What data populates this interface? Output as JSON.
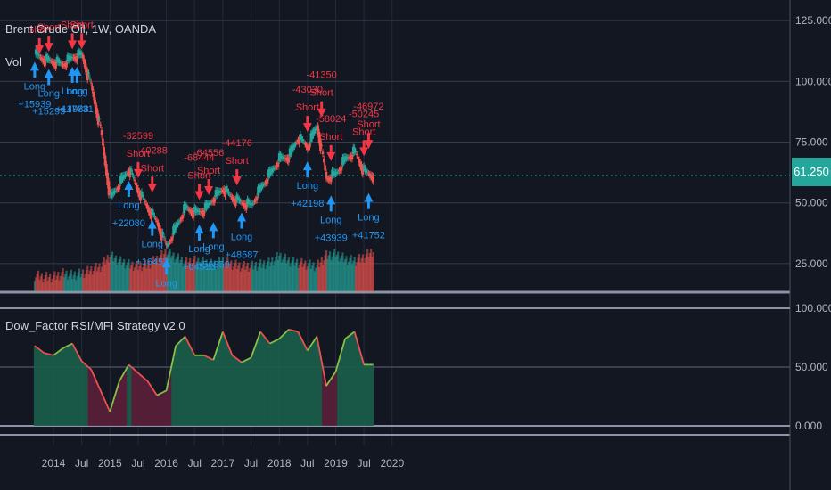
{
  "header": {
    "title": "Brent Crude Oil, 1W, OANDA",
    "volume_label": "Vol",
    "indicator_title": "Dow_Factor RSI/MFI Strategy v2.0"
  },
  "current_price": "61.250",
  "colors": {
    "background": "#131722",
    "grid": "#363c4e",
    "text": "#b2b5be",
    "up": "#26a69a",
    "down": "#ef5350",
    "long": "#2196f3",
    "short": "#f23645",
    "rsi_up": "#8bc34a",
    "rsi_down": "#ef5350"
  },
  "chart_data": {
    "type": "line",
    "price": {
      "y_ticks": [
        "125.000",
        "100.000",
        "75.000",
        "50.000",
        "25.000"
      ],
      "ylim": [
        18,
        128
      ],
      "x": [
        "2013-09",
        "2013-11",
        "2014-01",
        "2014-03",
        "2014-05",
        "2014-07",
        "2014-09",
        "2014-11",
        "2015-01",
        "2015-03",
        "2015-05",
        "2015-07",
        "2015-09",
        "2015-11",
        "2016-01",
        "2016-03",
        "2016-05",
        "2016-07",
        "2016-09",
        "2016-11",
        "2017-01",
        "2017-03",
        "2017-05",
        "2017-07",
        "2017-09",
        "2017-11",
        "2018-01",
        "2018-03",
        "2018-05",
        "2018-07",
        "2018-09",
        "2018-11",
        "2019-01",
        "2019-03",
        "2019-05",
        "2019-07",
        "2019-09"
      ],
      "close": [
        111,
        109,
        108,
        107,
        110,
        111,
        98,
        80,
        52,
        58,
        64,
        55,
        48,
        42,
        32,
        40,
        48,
        46,
        47,
        52,
        56,
        52,
        50,
        49,
        56,
        62,
        68,
        69,
        77,
        73,
        82,
        60,
        62,
        68,
        71,
        63,
        61
      ]
    },
    "volume": [
      9,
      8,
      8,
      10,
      9,
      10,
      12,
      14,
      20,
      17,
      15,
      14,
      15,
      18,
      22,
      19,
      16,
      17,
      16,
      15,
      17,
      15,
      14,
      14,
      15,
      16,
      20,
      17,
      16,
      15,
      14,
      20,
      21,
      18,
      17,
      19,
      23
    ],
    "indicator": {
      "y_ticks": [
        "100.000",
        "50.000",
        "0.000"
      ],
      "ylim": [
        0,
        100
      ],
      "values": [
        68,
        62,
        60,
        66,
        70,
        55,
        48,
        30,
        12,
        38,
        52,
        45,
        38,
        26,
        30,
        68,
        76,
        60,
        60,
        56,
        80,
        60,
        54,
        58,
        80,
        70,
        74,
        82,
        80,
        64,
        76,
        34,
        46,
        74,
        80,
        52,
        52
      ]
    },
    "x_ticks": [
      {
        "label": "2014",
        "date": "2014-01"
      },
      {
        "label": "Jul",
        "date": "2014-07"
      },
      {
        "label": "2015",
        "date": "2015-01"
      },
      {
        "label": "Jul",
        "date": "2015-07"
      },
      {
        "label": "2016",
        "date": "2016-01"
      },
      {
        "label": "Jul",
        "date": "2016-07"
      },
      {
        "label": "2017",
        "date": "2017-01"
      },
      {
        "label": "Jul",
        "date": "2017-07"
      },
      {
        "label": "2018",
        "date": "2018-01"
      },
      {
        "label": "Jul",
        "date": "2018-07"
      },
      {
        "label": "2019",
        "date": "2019-01"
      },
      {
        "label": "Jul",
        "date": "2019-07"
      },
      {
        "label": "2020",
        "date": "2020-01"
      }
    ],
    "signals": [
      {
        "type": "Short",
        "date": "2013-10",
        "value": "",
        "price": 109
      },
      {
        "type": "Short",
        "date": "2013-12",
        "value": "",
        "price": 110
      },
      {
        "type": "Short",
        "date": "2014-05",
        "value": "",
        "price": 111
      },
      {
        "type": "Short",
        "date": "2014-07",
        "value": "",
        "price": 111
      },
      {
        "type": "Long",
        "date": "2013-09",
        "value": "+15939",
        "price": 111
      },
      {
        "type": "Long",
        "date": "2013-12",
        "value": "+15295",
        "price": 108
      },
      {
        "type": "Long",
        "date": "2014-05",
        "value": "+14988",
        "price": 109
      },
      {
        "type": "Long",
        "date": "2014-06",
        "value": "+17731",
        "price": 109
      },
      {
        "type": "Short",
        "date": "2015-07",
        "value": "-32599",
        "price": 58
      },
      {
        "type": "Short",
        "date": "2015-10",
        "value": "-40288",
        "price": 52
      },
      {
        "type": "Long",
        "date": "2015-05",
        "value": "+22080",
        "price": 62
      },
      {
        "type": "Long",
        "date": "2015-10",
        "value": "+16453",
        "price": 46
      },
      {
        "type": "Long",
        "date": "2016-01",
        "value": "",
        "price": 30
      },
      {
        "type": "Short",
        "date": "2016-08",
        "value": "-68444",
        "price": 49
      },
      {
        "type": "Short",
        "date": "2016-10",
        "value": "-64556",
        "price": 51
      },
      {
        "type": "Short",
        "date": "2017-04",
        "value": "-44176",
        "price": 55
      },
      {
        "type": "Long",
        "date": "2016-08",
        "value": "+64513",
        "price": 44
      },
      {
        "type": "Long",
        "date": "2016-11",
        "value": "+56859",
        "price": 45
      },
      {
        "type": "Long",
        "date": "2017-05",
        "value": "+48587",
        "price": 49
      },
      {
        "type": "Short",
        "date": "2018-07",
        "value": "-43030",
        "price": 77
      },
      {
        "type": "Short",
        "date": "2018-10",
        "value": "-41350",
        "price": 83
      },
      {
        "type": "Short",
        "date": "2018-12",
        "value": "-58024",
        "price": 65
      },
      {
        "type": "Long",
        "date": "2018-07",
        "value": "+42198",
        "price": 70
      },
      {
        "type": "Long",
        "date": "2018-12",
        "value": "+43939",
        "price": 56
      },
      {
        "type": "Short",
        "date": "2019-07",
        "value": "-50245",
        "price": 67
      },
      {
        "type": "Short",
        "date": "2019-08",
        "value": "-46972",
        "price": 70
      },
      {
        "type": "Long",
        "date": "2019-08",
        "value": "+41752",
        "price": 57
      }
    ]
  }
}
